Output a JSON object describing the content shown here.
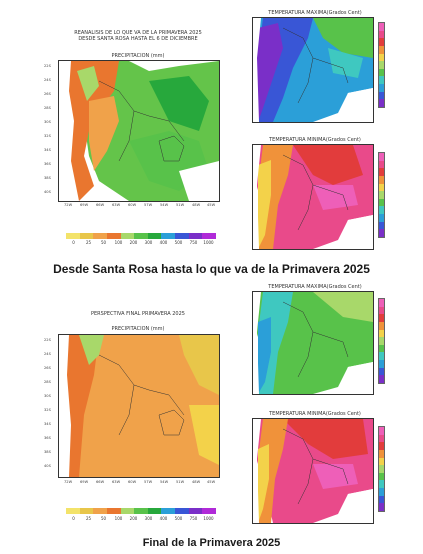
{
  "top": {
    "left_map": {
      "title_line1": "REANALISIS DE LO QUE VA DE LA PRIMAVERA 2025",
      "title_line2": "DESDE SANTA ROSA HASTA EL 6 DE DICIEMBRE",
      "var_label": "PRECIPITACION (mm)"
    },
    "right_map_1": {
      "var_label": "TEMPERATURA MAXIMA(Grados Cent)"
    },
    "right_map_2": {
      "var_label": "TEMPERATURA MINIMA(Grados Cent)"
    },
    "caption": "Desde Santa Rosa hasta lo que va de la Primavera 2025"
  },
  "bottom": {
    "left_map": {
      "title_line1": "PERSPECTIVA FINAL PRIMAVERA 2025",
      "var_label": "PRECIPITACION (mm)"
    },
    "right_map_1": {
      "var_label": "TEMPERATURA MAXIMA(Grados Cent)"
    },
    "right_map_2": {
      "var_label": "TEMPERATURA MINIMA(Grados Cent)"
    },
    "caption": "Final de la Primavera 2025"
  },
  "precip_scale": {
    "labels": [
      "0",
      "25",
      "50",
      "100",
      "200",
      "300",
      "400",
      "500",
      "750",
      "1000"
    ],
    "colors": [
      "#f3e36a",
      "#e8c64a",
      "#f0a24a",
      "#e9762f",
      "#a8d86a",
      "#58c24a",
      "#27a83c",
      "#2b9fd8",
      "#3956d6",
      "#7a2fc8",
      "#b02ad8"
    ]
  },
  "lat_labels": [
    "22S",
    "24S",
    "26S",
    "28S",
    "30S",
    "32S",
    "34S",
    "36S",
    "38S",
    "40S"
  ],
  "lon_labels": [
    "72W",
    "69W",
    "66W",
    "63W",
    "60W",
    "57W",
    "54W",
    "51W",
    "48W",
    "45W"
  ]
}
